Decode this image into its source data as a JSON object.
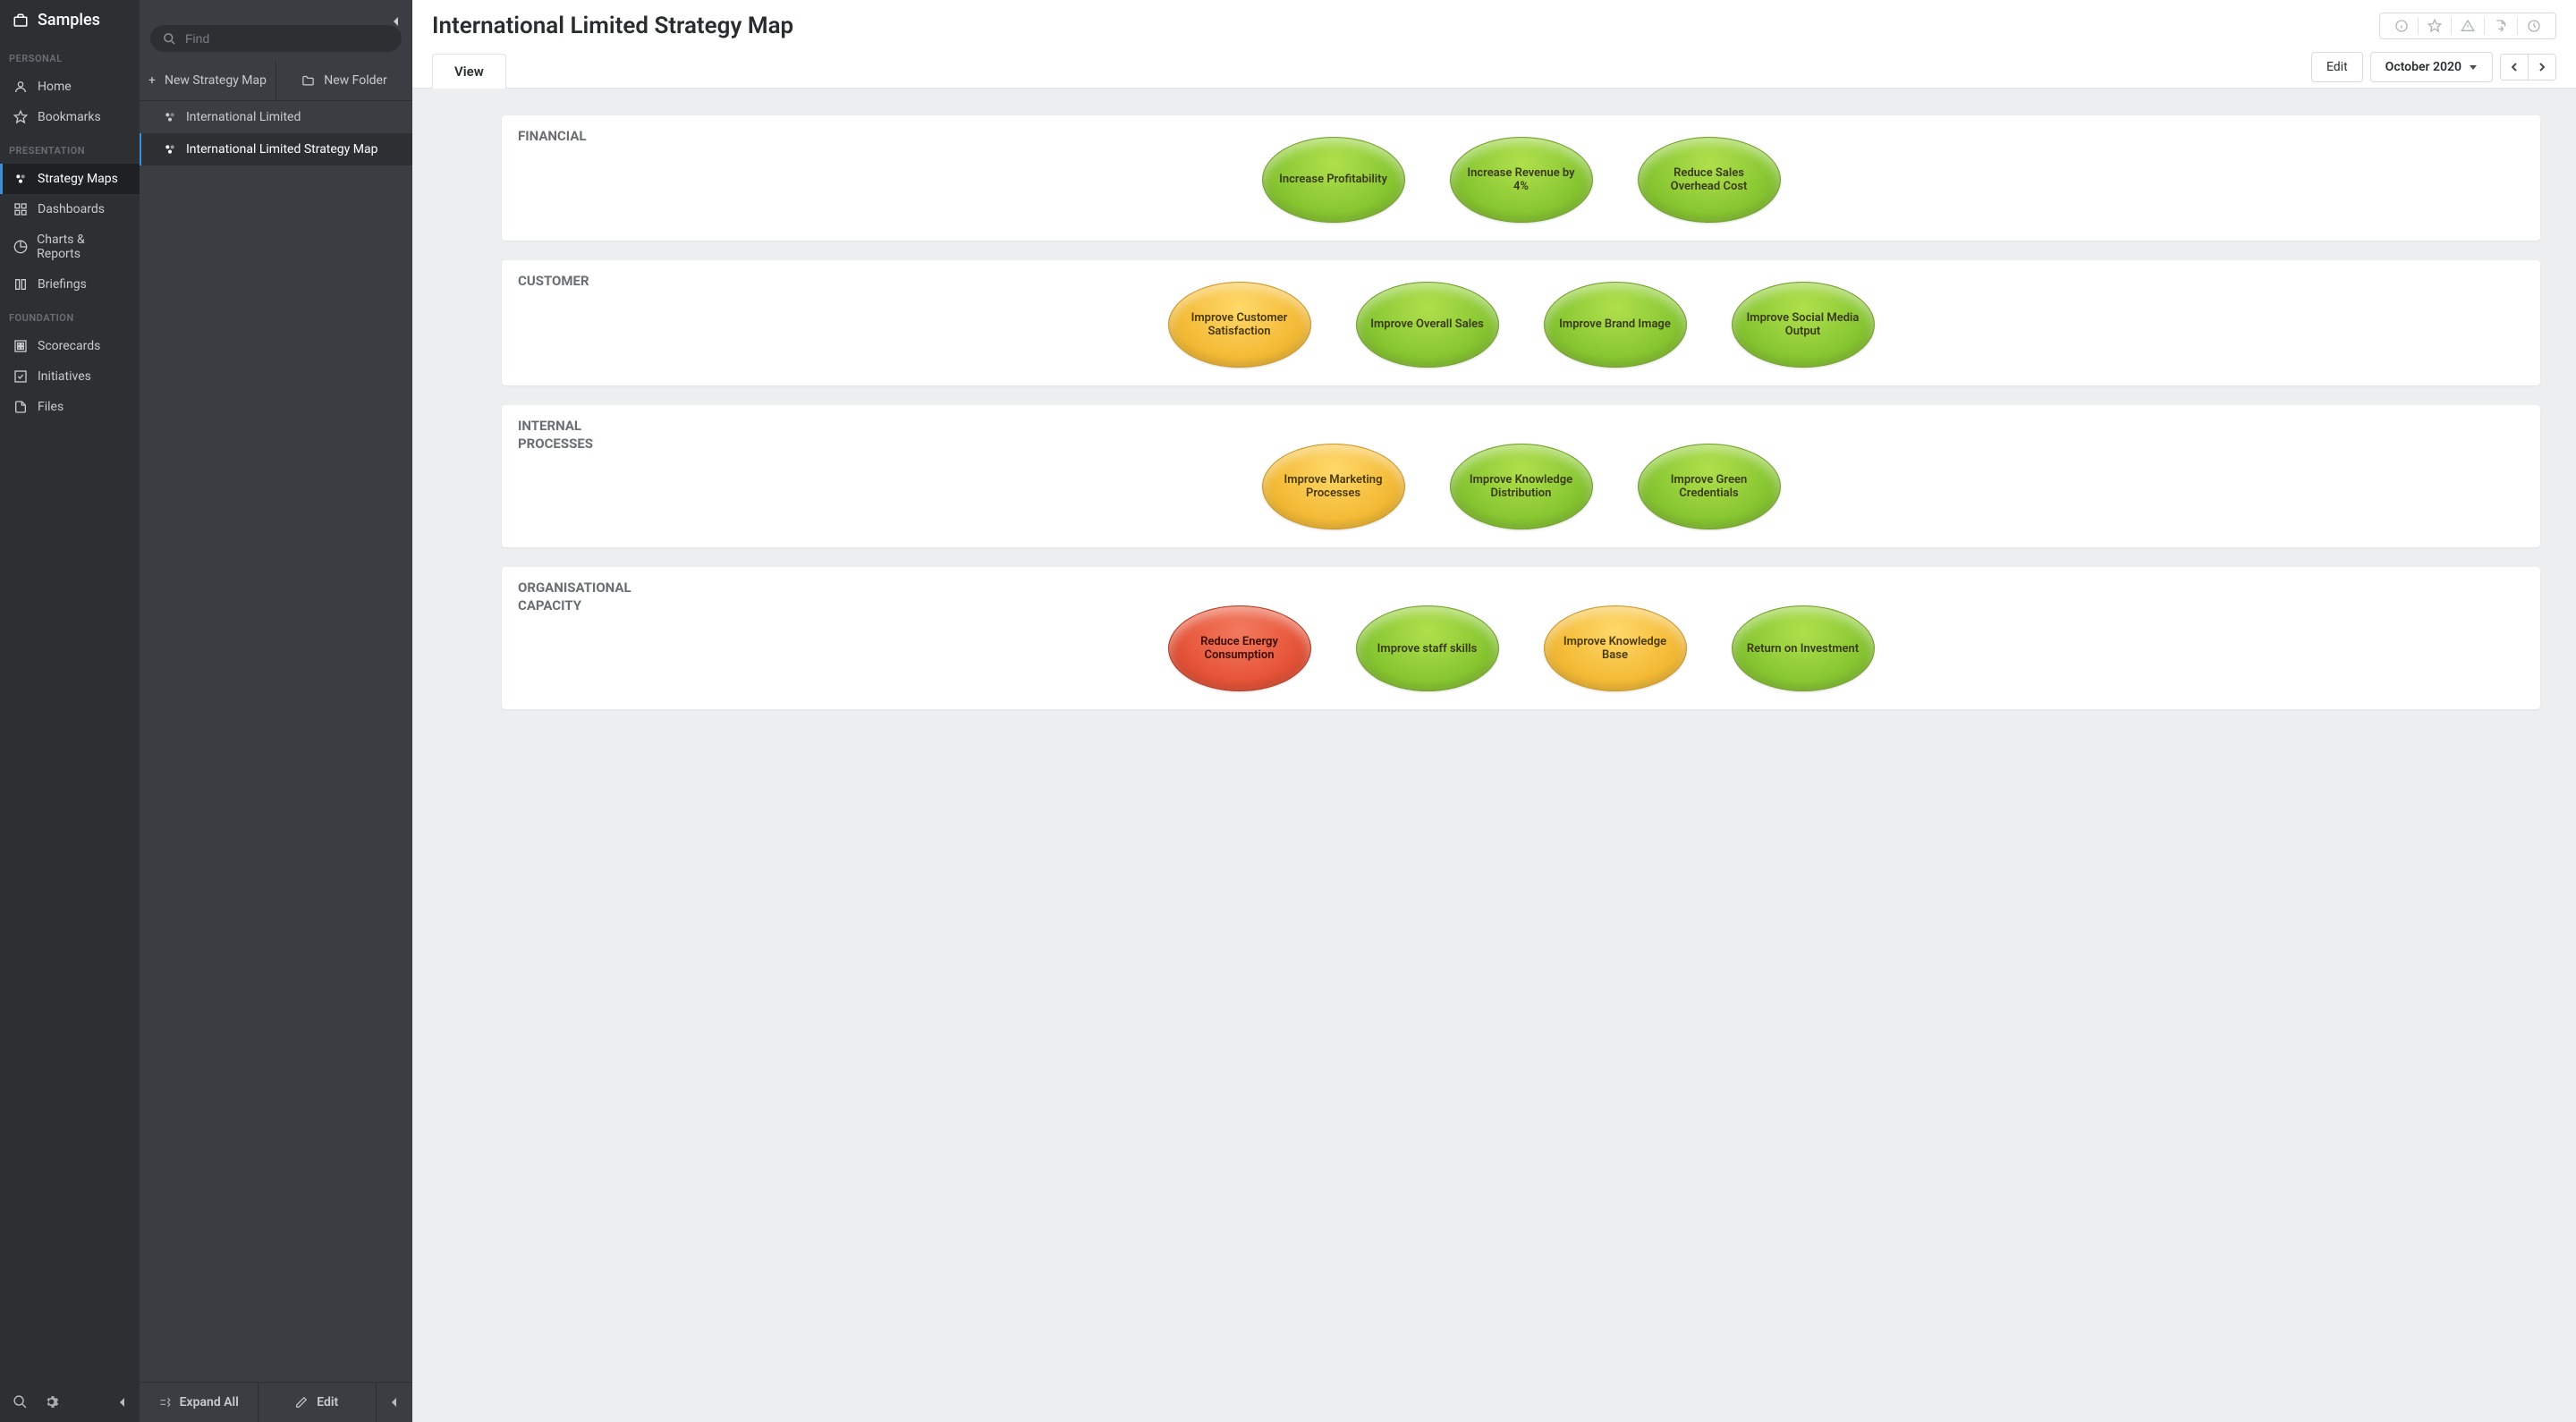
{
  "app_title": "Samples",
  "sidebar1": {
    "sections": [
      {
        "label": "PERSONAL",
        "items": [
          {
            "key": "home",
            "label": "Home"
          },
          {
            "key": "bookmarks",
            "label": "Bookmarks"
          }
        ]
      },
      {
        "label": "PRESENTATION",
        "items": [
          {
            "key": "strategy-maps",
            "label": "Strategy Maps",
            "active": true
          },
          {
            "key": "dashboards",
            "label": "Dashboards"
          },
          {
            "key": "charts-reports",
            "label": "Charts & Reports"
          },
          {
            "key": "briefings",
            "label": "Briefings"
          }
        ]
      },
      {
        "label": "FOUNDATION",
        "items": [
          {
            "key": "scorecards",
            "label": "Scorecards"
          },
          {
            "key": "initiatives",
            "label": "Initiatives"
          },
          {
            "key": "files",
            "label": "Files"
          }
        ]
      }
    ]
  },
  "sidebar2": {
    "search_placeholder": "Find",
    "new_map_label": "New Strategy Map",
    "new_folder_label": "New Folder",
    "tree": [
      {
        "label": "International Limited",
        "selected": false
      },
      {
        "label": "International Limited Strategy Map",
        "selected": true
      }
    ],
    "footer": {
      "expand_label": "Expand All",
      "edit_label": "Edit"
    }
  },
  "main": {
    "title": "International Limited Strategy Map",
    "tabs": {
      "view": "View"
    },
    "controls": {
      "edit": "Edit",
      "period": "October 2020"
    },
    "perspectives": [
      {
        "label": "FINANCIAL",
        "ovals": [
          {
            "text": "Increase Profitability",
            "color": "green"
          },
          {
            "text": "Increase Revenue by 4%",
            "color": "green"
          },
          {
            "text": "Reduce Sales Overhead Cost",
            "color": "green"
          }
        ]
      },
      {
        "label": "CUSTOMER",
        "ovals": [
          {
            "text": "Improve Customer Satisfaction",
            "color": "yellow"
          },
          {
            "text": "Improve Overall Sales",
            "color": "green"
          },
          {
            "text": "Improve Brand Image",
            "color": "green"
          },
          {
            "text": "Improve Social Media Output",
            "color": "green"
          }
        ]
      },
      {
        "label": "INTERNAL PROCESSES",
        "ovals": [
          {
            "text": "Improve Marketing Processes",
            "color": "yellow"
          },
          {
            "text": "Improve Knowledge Distribution",
            "color": "green"
          },
          {
            "text": "Improve Green Credentials",
            "color": "green"
          }
        ]
      },
      {
        "label": "ORGANISATIONAL CAPACITY",
        "ovals": [
          {
            "text": "Reduce Energy Consumption",
            "color": "red"
          },
          {
            "text": "Improve staff skills",
            "color": "green"
          },
          {
            "text": "Improve Knowledge Base",
            "color": "yellow"
          },
          {
            "text": "Return on Investment",
            "color": "green"
          }
        ]
      }
    ]
  },
  "colors": {
    "green": "#8bc934",
    "yellow": "#f5bd3a",
    "red": "#e8573b",
    "sidebar1_bg": "#2d2f33",
    "sidebar2_bg": "#3a3d42",
    "canvas_bg": "#eceef0",
    "accent": "#3a8fd6"
  }
}
